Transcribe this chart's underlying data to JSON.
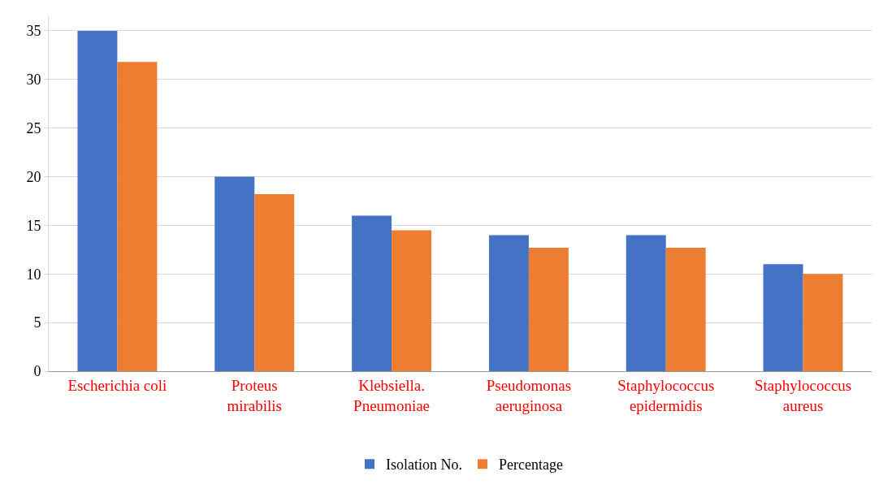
{
  "chart_data": {
    "type": "bar",
    "categories": [
      "Escherichia coli",
      "Proteus\nmirabilis",
      "Klebsiella.\nPneumoniae",
      "Pseudomonas\naeruginosa",
      "Staphylococcus\nepidermidis",
      "Staphylococcus\naureus"
    ],
    "series": [
      {
        "name": "Isolation No.",
        "color": "#4472c4",
        "values": [
          35,
          20,
          16,
          14,
          14,
          11
        ]
      },
      {
        "name": "Percentage",
        "color": "#ed7d31",
        "values": [
          31.8,
          18.2,
          14.5,
          12.7,
          12.7,
          10.0
        ]
      }
    ],
    "ylim": [
      0,
      36.5
    ],
    "yticks": [
      0,
      5,
      10,
      15,
      20,
      25,
      30,
      35
    ],
    "grid": "y",
    "legend": "bottom"
  }
}
